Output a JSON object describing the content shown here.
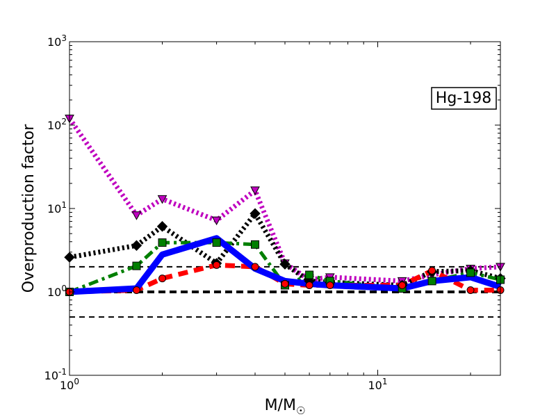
{
  "chart_data": {
    "type": "line",
    "xlabel": "M/M",
    "xlabel_sub": "☉",
    "ylabel": "Overproduction factor",
    "xscale": "log",
    "yscale": "log",
    "xlim": [
      1,
      25
    ],
    "ylim": [
      0.1,
      1000
    ],
    "x_ticks": [
      {
        "value": 1,
        "base": "10",
        "exp": "0"
      },
      {
        "value": 10,
        "base": "10",
        "exp": "1"
      }
    ],
    "y_ticks": [
      {
        "value": 0.1,
        "base": "10",
        "exp": "-1"
      },
      {
        "value": 1,
        "base": "10",
        "exp": "0"
      },
      {
        "value": 10,
        "base": "10",
        "exp": "1"
      },
      {
        "value": 100,
        "base": "10",
        "exp": "2"
      },
      {
        "value": 1000,
        "base": "10",
        "exp": "3"
      }
    ],
    "annotation": "Hg-198",
    "annotation_position": "top-right",
    "reference_lines": [
      {
        "y": 2.0,
        "style": "dashed-thin"
      },
      {
        "y": 1.0,
        "style": "dashed-thick"
      },
      {
        "y": 0.5,
        "style": "dashed-thin"
      }
    ],
    "series": [
      {
        "color": "#bf00bf",
        "marker": "triangle-down",
        "line": "dotted",
        "x": [
          1,
          1.65,
          2,
          3,
          4,
          5,
          6,
          7,
          12,
          15,
          20,
          25
        ],
        "y": [
          120,
          8.3,
          13,
          7.2,
          16.5,
          2.2,
          1.4,
          1.5,
          1.35,
          1.6,
          1.9,
          2.0
        ]
      },
      {
        "color": "#000000",
        "marker": "diamond",
        "line": "dotted",
        "x": [
          1,
          1.65,
          2,
          3,
          4,
          5,
          6,
          7,
          12,
          15,
          20,
          25
        ],
        "y": [
          2.6,
          3.6,
          6.1,
          2.2,
          8.7,
          2.15,
          1.35,
          1.3,
          1.2,
          1.75,
          1.8,
          1.45
        ]
      },
      {
        "color": "#007f00",
        "marker": "square",
        "line": "dashdot",
        "x": [
          1,
          1.65,
          2,
          3,
          4,
          5,
          6,
          7,
          12,
          15,
          20,
          25
        ],
        "y": [
          1.0,
          2.05,
          3.9,
          3.9,
          3.7,
          1.2,
          1.6,
          1.35,
          1.1,
          1.35,
          1.7,
          1.4
        ]
      },
      {
        "color": "#ff0000",
        "marker": "circle",
        "line": "dashed",
        "x": [
          1,
          1.65,
          2,
          3,
          4,
          5,
          6,
          7,
          12,
          15,
          20,
          25
        ],
        "y": [
          1.0,
          1.05,
          1.45,
          2.1,
          2.0,
          1.25,
          1.2,
          1.2,
          1.2,
          1.8,
          1.05,
          1.05
        ]
      },
      {
        "color": "#0000ff",
        "marker": "none",
        "line": "solid",
        "x": [
          1,
          1.65,
          2,
          3,
          4,
          5,
          6,
          7,
          12,
          15,
          20,
          25
        ],
        "y": [
          1.0,
          1.1,
          2.8,
          4.4,
          1.9,
          1.35,
          1.25,
          1.2,
          1.1,
          1.35,
          1.5,
          1.15
        ]
      }
    ]
  }
}
